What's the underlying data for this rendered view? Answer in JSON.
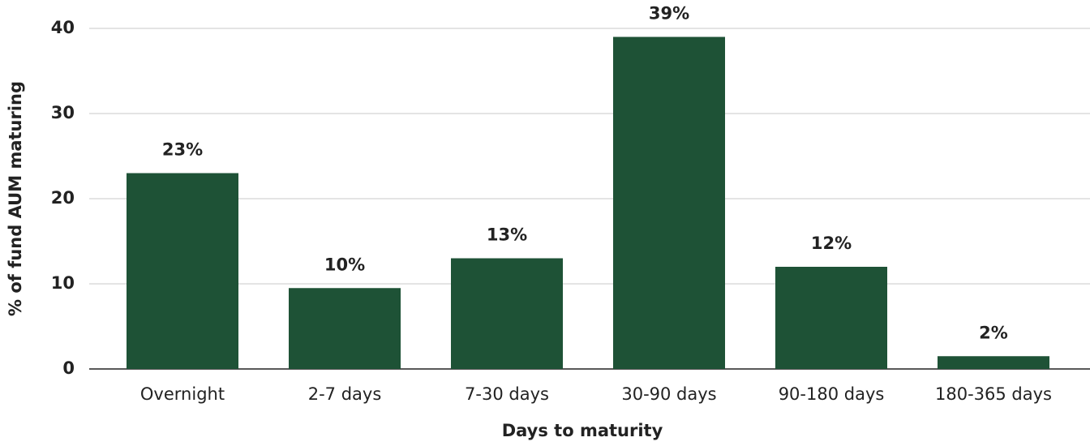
{
  "chart_data": {
    "type": "bar",
    "x_label": "Days to maturity",
    "y_label": "% of fund AUM maturing",
    "categories": [
      "Overnight",
      "2-7 days",
      "7-30 days",
      "30-90 days",
      "90-180 days",
      "180-365 days"
    ],
    "values": [
      23,
      9.5,
      13,
      39,
      12,
      1.5
    ],
    "value_labels": [
      "23%",
      "10%",
      "13%",
      "39%",
      "12%",
      "2%"
    ],
    "color": "#1e5236",
    "ylim": [
      0,
      40
    ],
    "yticks": [
      0,
      10,
      20,
      30,
      40
    ],
    "grid": true
  }
}
